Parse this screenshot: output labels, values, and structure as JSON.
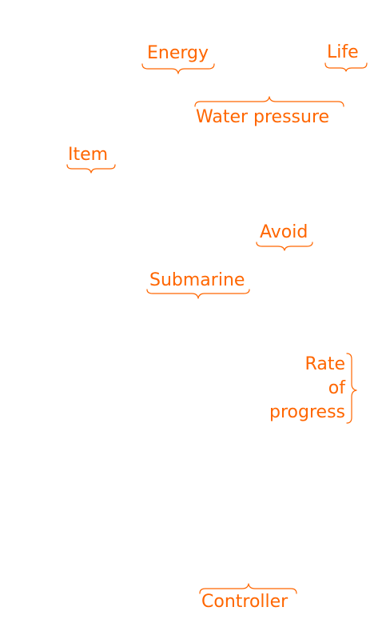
{
  "labels": {
    "energy": "Energy",
    "life": "Life",
    "water_pressure": "Water pressure",
    "item": "Item",
    "avoid": "Avoid",
    "submarine": "Submarine",
    "rate_of_progress": [
      "Rate",
      "of",
      "progress"
    ],
    "controller": "Controller"
  },
  "colors": {
    "annotation": "#ff6600",
    "background": "#ffffff"
  }
}
